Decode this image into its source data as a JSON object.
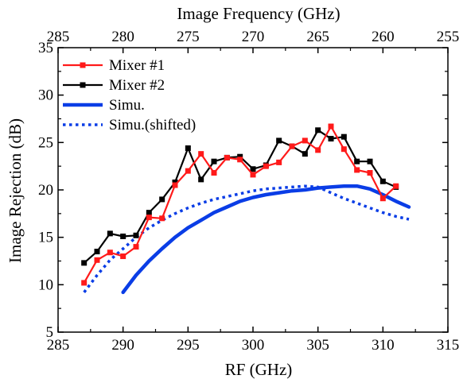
{
  "chart_data": {
    "type": "line",
    "xlabel": "RF (GHz)",
    "ylabel": "Image Rejection (dB)",
    "x2label": "Image Frequency (GHz)",
    "xlim": [
      285,
      315
    ],
    "ylim": [
      5,
      35
    ],
    "x2lim": [
      285,
      255
    ],
    "xticks": [
      285,
      290,
      295,
      300,
      305,
      310,
      315
    ],
    "yticks": [
      5,
      10,
      15,
      20,
      25,
      30,
      35
    ],
    "x2ticks": [
      285,
      280,
      275,
      270,
      265,
      260,
      255
    ],
    "grid": false,
    "legend_position": "top-left",
    "series": [
      {
        "name": "Mixer #1",
        "color": "#ff1a1a",
        "style": "solid",
        "marker": "square",
        "x": [
          287,
          288,
          289,
          290,
          291,
          292,
          293,
          294,
          295,
          296,
          297,
          298,
          299,
          300,
          301,
          302,
          303,
          304,
          305,
          306,
          307,
          308,
          309,
          310,
          311
        ],
        "y": [
          10.2,
          12.6,
          13.4,
          13.0,
          14.0,
          17.1,
          17.0,
          20.5,
          22.0,
          23.8,
          21.8,
          23.4,
          23.2,
          21.6,
          22.5,
          22.9,
          24.6,
          25.2,
          24.2,
          26.7,
          24.3,
          22.1,
          21.8,
          19.1,
          20.4
        ]
      },
      {
        "name": "Mixer #2",
        "color": "#000000",
        "style": "solid",
        "marker": "square",
        "x": [
          287,
          288,
          289,
          290,
          291,
          292,
          293,
          294,
          295,
          296,
          297,
          298,
          299,
          300,
          301,
          302,
          303,
          304,
          305,
          306,
          307,
          308,
          309,
          310,
          311
        ],
        "y": [
          12.3,
          13.5,
          15.4,
          15.1,
          15.2,
          17.6,
          19.0,
          20.8,
          24.4,
          21.1,
          23.0,
          23.4,
          23.5,
          22.2,
          22.6,
          25.2,
          24.6,
          23.8,
          26.3,
          25.4,
          25.6,
          23.0,
          23.0,
          20.9,
          20.3
        ]
      },
      {
        "name": "Simu.",
        "color": "#0a3de6",
        "style": "solid",
        "marker": "none",
        "x": [
          290,
          291,
          292,
          293,
          294,
          295,
          296,
          297,
          298,
          299,
          300,
          301,
          302,
          303,
          304,
          305,
          306,
          307,
          308,
          309,
          310,
          311,
          312
        ],
        "y": [
          9.2,
          11.0,
          12.5,
          13.8,
          15.0,
          16.0,
          16.8,
          17.6,
          18.2,
          18.8,
          19.2,
          19.5,
          19.7,
          19.9,
          20.0,
          20.2,
          20.3,
          20.4,
          20.4,
          20.1,
          19.5,
          18.8,
          18.2
        ]
      },
      {
        "name": "Simu.(shifted)",
        "color": "#0a3de6",
        "style": "dotted",
        "marker": "none",
        "x": [
          287,
          288,
          289,
          290,
          291,
          292,
          293,
          294,
          295,
          296,
          297,
          298,
          299,
          300,
          301,
          302,
          303,
          304,
          305,
          306,
          307,
          308,
          309,
          310,
          311,
          312
        ],
        "y": [
          9.2,
          11.0,
          12.6,
          13.8,
          15.0,
          16.0,
          16.8,
          17.5,
          18.1,
          18.6,
          19.0,
          19.3,
          19.6,
          19.9,
          20.1,
          20.2,
          20.3,
          20.4,
          20.3,
          19.7,
          19.1,
          18.6,
          18.1,
          17.6,
          17.2,
          16.9
        ]
      }
    ]
  }
}
